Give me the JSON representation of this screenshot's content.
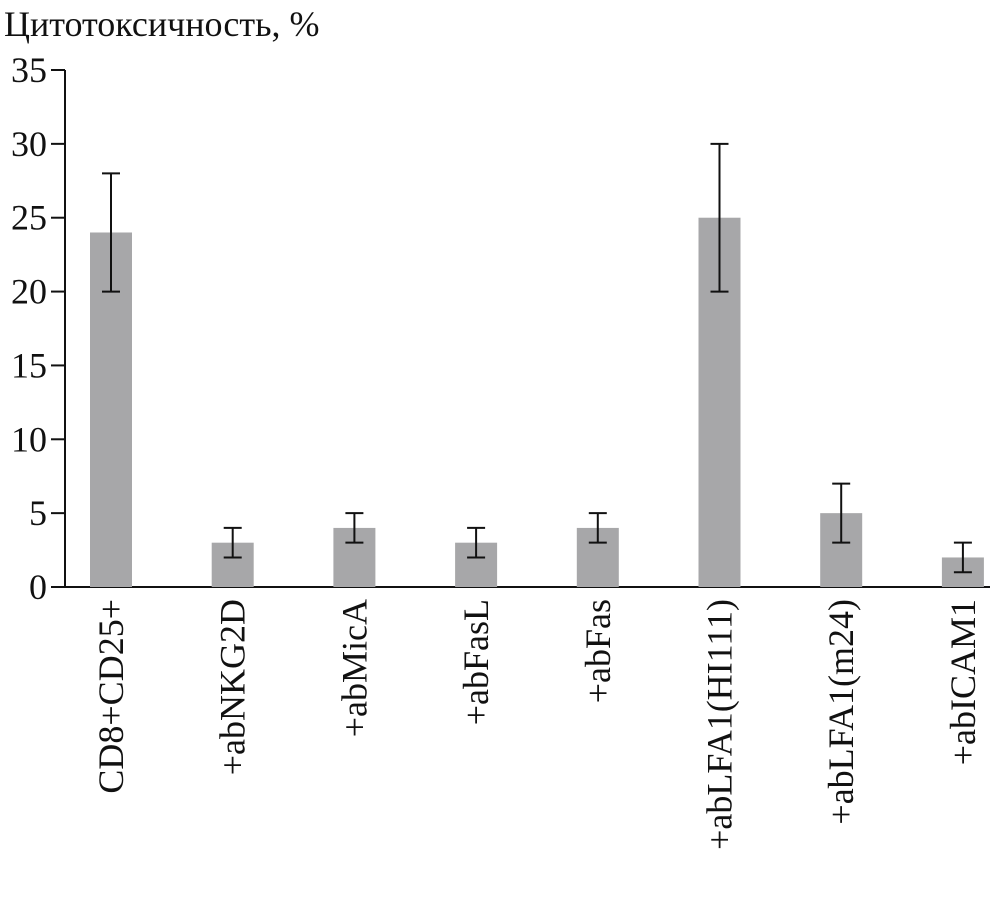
{
  "chart_data": {
    "type": "bar",
    "title": "Цитотоксичность, %",
    "categories": [
      "CD8+CD25+",
      "+abNKG2D",
      "+abMicA",
      "+abFasL",
      "+abFas",
      "+abLFA1(HI111)",
      "+abLFA1(m24)",
      "+abICAM1"
    ],
    "values": [
      24,
      3,
      4,
      3,
      4,
      25,
      5,
      2
    ],
    "errors": [
      4,
      1,
      1,
      1,
      1,
      5,
      2,
      1
    ],
    "color": "#a7a7a9",
    "ylim": [
      0,
      35
    ],
    "yticks": [
      0,
      5,
      10,
      15,
      20,
      25,
      30,
      35
    ],
    "grid": false
  }
}
